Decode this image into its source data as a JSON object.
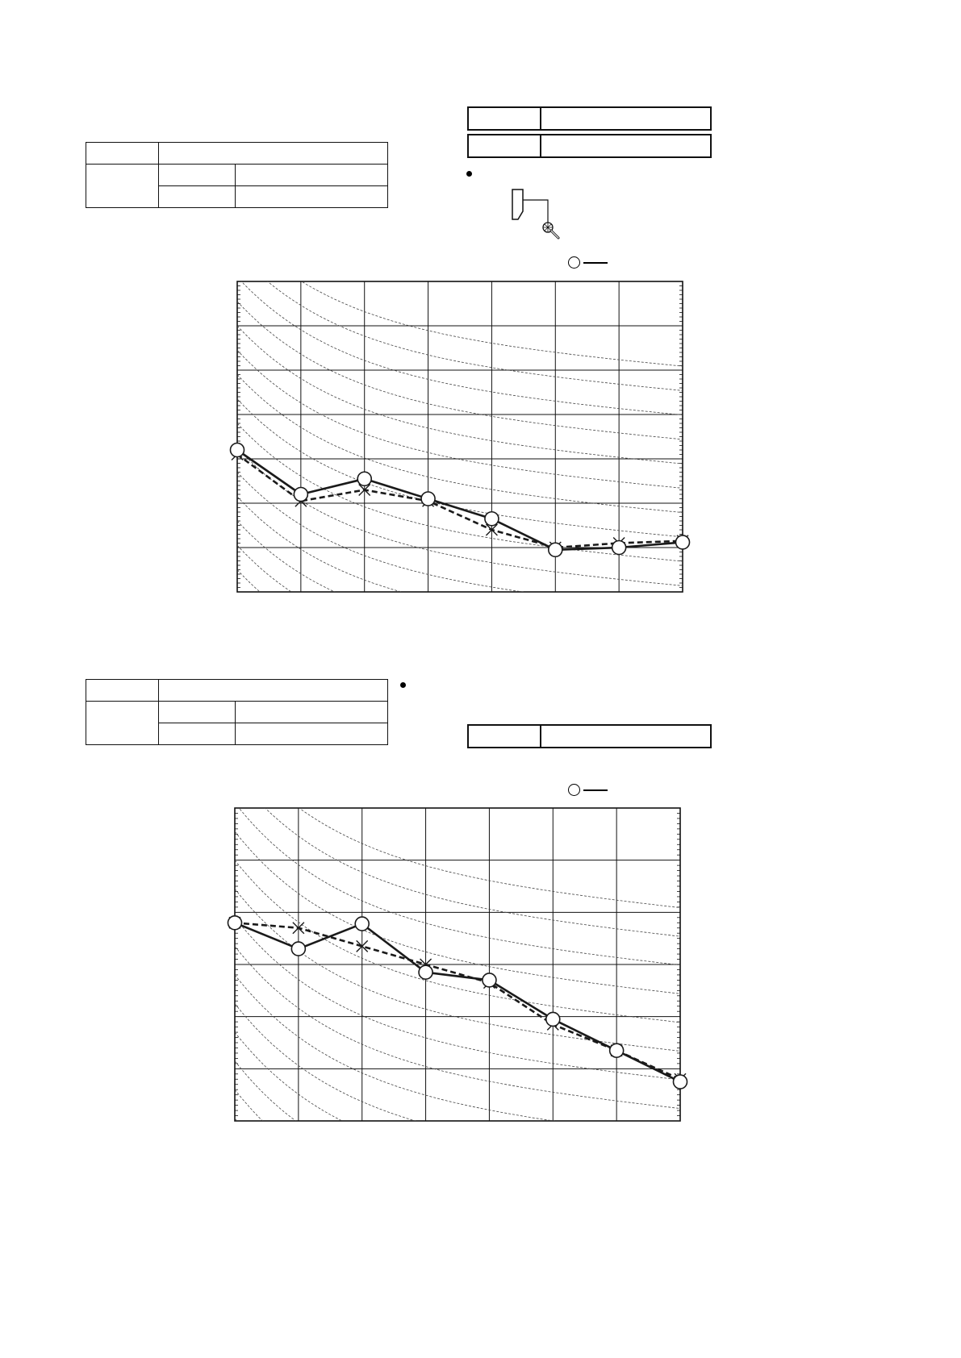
{
  "colors": {
    "ink": "#1a1a1a",
    "grid": "#111111",
    "guide": "#444444",
    "background": "#ffffff"
  },
  "icons": {
    "microphone": "microphone-icon",
    "unit": "indoor-unit-icon"
  },
  "chart_data": [
    {
      "type": "line",
      "title": "",
      "xlabel": "",
      "ylabel": "",
      "grid": true,
      "x_bands": 7,
      "y_bands": 7,
      "series": [
        {
          "style": "solid",
          "marker": "circle",
          "values": [
            3.2,
            2.2,
            2.55,
            2.1,
            1.65,
            0.95,
            1.0,
            1.12
          ]
        },
        {
          "style": "dashed",
          "marker": "cross",
          "values": [
            3.1,
            2.05,
            2.3,
            2.05,
            1.4,
            1.0,
            1.1,
            1.15
          ]
        }
      ]
    },
    {
      "type": "line",
      "title": "",
      "xlabel": "",
      "ylabel": "",
      "grid": true,
      "x_bands": 7,
      "y_bands": 6,
      "series": [
        {
          "style": "solid",
          "marker": "circle",
          "values": [
            3.8,
            3.3,
            3.78,
            2.85,
            2.7,
            1.95,
            1.35,
            0.75
          ]
        },
        {
          "style": "dashed",
          "marker": "cross",
          "values": [
            3.8,
            3.7,
            3.35,
            3.0,
            2.65,
            1.85,
            1.35,
            0.8
          ]
        }
      ]
    }
  ]
}
